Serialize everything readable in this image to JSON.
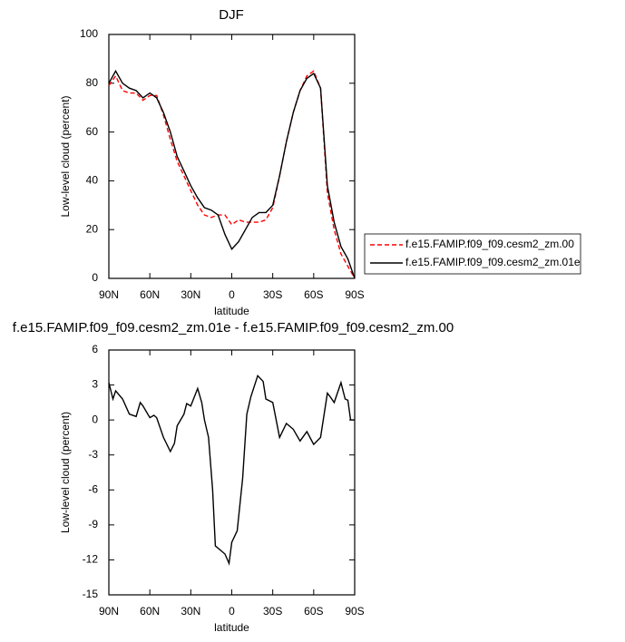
{
  "chart_data": [
    {
      "type": "line",
      "title": "DJF",
      "xlabel": "latitude",
      "ylabel": "Low-level cloud (percent)",
      "x": [
        90,
        85,
        80,
        75,
        70,
        65,
        60,
        55,
        50,
        45,
        40,
        35,
        30,
        25,
        20,
        15,
        10,
        5,
        0,
        -5,
        -10,
        -15,
        -20,
        -25,
        -30,
        -35,
        -40,
        -45,
        -50,
        -55,
        -60,
        -65,
        -70,
        -75,
        -80,
        -85,
        -90
      ],
      "series": [
        {
          "name": "f.e15.FAMIP.f09_f09.cesm2_zm.00",
          "color": "#ff0000",
          "linestyle": "dashed",
          "values": [
            79,
            83,
            77,
            76,
            76,
            73,
            75,
            75,
            67,
            57,
            48,
            42,
            36,
            30,
            26,
            25,
            26,
            26,
            22,
            24,
            23,
            23,
            23,
            24,
            29,
            42,
            56,
            68,
            77,
            83,
            85,
            78,
            35,
            20,
            10,
            5,
            0
          ]
        },
        {
          "name": "f.e15.FAMIP.f09_f09.cesm2_zm.01e",
          "color": "#000000",
          "linestyle": "solid",
          "values": [
            80,
            85,
            80,
            78,
            77,
            74,
            76,
            74,
            68,
            60,
            50,
            44,
            38,
            33,
            29,
            28,
            26,
            18,
            12,
            15,
            20,
            25,
            27,
            27,
            30,
            42,
            56,
            68,
            77,
            82,
            84,
            78,
            38,
            23,
            13,
            8,
            0
          ]
        }
      ],
      "xlim": [
        90,
        -90
      ],
      "xticks": [
        {
          "value": 90,
          "label": "90N"
        },
        {
          "value": 60,
          "label": "60N"
        },
        {
          "value": 30,
          "label": "30N"
        },
        0,
        {
          "value": -30,
          "label": "30S"
        },
        {
          "value": -60,
          "label": "60S"
        },
        {
          "value": -90,
          "label": "90S"
        }
      ],
      "ylim": [
        0,
        100
      ],
      "yticks": [
        0,
        20,
        40,
        60,
        80,
        100
      ],
      "legend": "right"
    },
    {
      "type": "line",
      "title": "f.e15.FAMIP.f09_f09.cesm2_zm.01e - f.e15.FAMIP.f09_f09.cesm2_zm.00",
      "xlabel": "latitude",
      "ylabel": "Low-level cloud (percent)",
      "x": [
        90,
        87,
        85,
        80,
        75,
        70,
        67,
        65,
        60,
        57,
        55,
        50,
        45,
        42,
        40,
        35,
        33,
        30,
        25,
        22,
        20,
        17,
        14,
        12,
        8,
        5,
        2,
        0,
        -4,
        -8,
        -11,
        -14,
        -19,
        -23,
        -25,
        -30,
        -35,
        -40,
        -45,
        -50,
        -55,
        -60,
        -65,
        -70,
        -72,
        -75,
        -80,
        -83,
        -85,
        -87,
        -90
      ],
      "values": [
        3.2,
        1.8,
        2.5,
        1.8,
        0.5,
        0.3,
        1.5,
        1.2,
        0.2,
        0.4,
        0.2,
        -1.5,
        -2.7,
        -2,
        -0.5,
        0.5,
        1.4,
        1.2,
        2.7,
        1.5,
        0,
        -1.5,
        -6,
        -10.8,
        -11.2,
        -11.5,
        -12.3,
        -10.5,
        -9.5,
        -5,
        0.5,
        2,
        3.8,
        3.3,
        1.8,
        1.5,
        -1.5,
        -0.3,
        -0.8,
        -1.8,
        -1,
        -2.1,
        -1.5,
        2.3,
        2,
        1.5,
        3.2,
        1.8,
        1.7,
        0,
        0
      ],
      "color": "#000000",
      "xlim": [
        90,
        -90
      ],
      "xticks": [
        {
          "value": 90,
          "label": "90N"
        },
        {
          "value": 60,
          "label": "60N"
        },
        {
          "value": 30,
          "label": "30N"
        },
        0,
        {
          "value": -30,
          "label": "30S"
        },
        {
          "value": -60,
          "label": "60S"
        },
        {
          "value": -90,
          "label": "90S"
        }
      ],
      "ylim": [
        -15,
        6
      ],
      "yticks": [
        -15,
        -12,
        -9,
        -6,
        -3,
        0,
        3,
        6
      ]
    }
  ]
}
